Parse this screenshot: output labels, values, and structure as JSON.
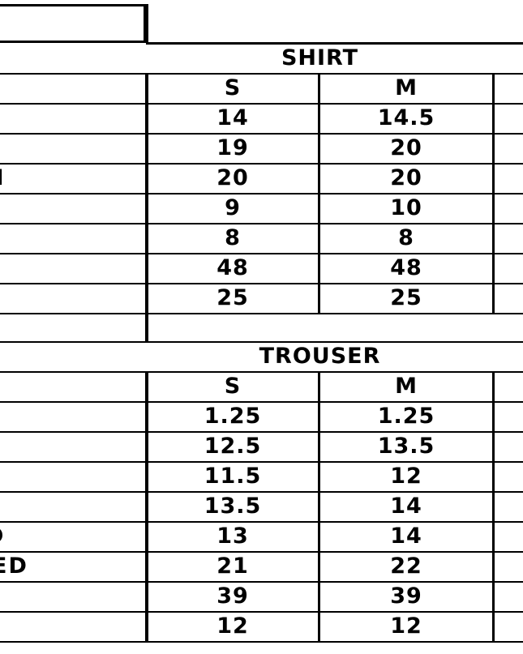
{
  "shirt": {
    "title": "SHIRT",
    "columns": [
      "S",
      "M"
    ],
    "row_labels_partial": [
      "",
      "",
      "N",
      "",
      "",
      "",
      ""
    ],
    "rows": [
      [
        "14",
        "14.5"
      ],
      [
        "19",
        "20"
      ],
      [
        "20",
        "20"
      ],
      [
        "9",
        "10"
      ],
      [
        "8",
        "8"
      ],
      [
        "48",
        "48"
      ],
      [
        "25",
        "25"
      ]
    ]
  },
  "trouser": {
    "title": "TROUSER",
    "columns": [
      "S",
      "M"
    ],
    "row_labels_partial": [
      "",
      "",
      "",
      "",
      "D",
      "ED",
      "",
      ""
    ],
    "rows": [
      [
        "1.25",
        "1.25"
      ],
      [
        "12.5",
        "13.5"
      ],
      [
        "11.5",
        "12"
      ],
      [
        "13.5",
        "14"
      ],
      [
        "13",
        "14"
      ],
      [
        "21",
        "22"
      ],
      [
        "39",
        "39"
      ],
      [
        "12",
        "12"
      ]
    ]
  }
}
